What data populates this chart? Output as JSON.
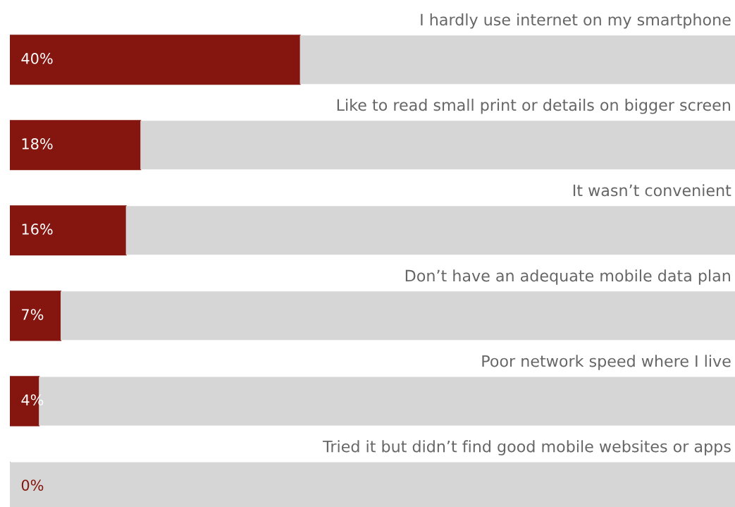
{
  "chart_data": {
    "type": "bar",
    "orientation": "horizontal",
    "stacked": true,
    "categories": [
      "I hardly use internet on my smartphone",
      "Like to read small print or details on bigger screen",
      "It wasn’t convenient",
      "Don’t have an adequate mobile data plan",
      "Poor network speed where I live",
      "Tried it but didn’t find good mobile websites or apps"
    ],
    "series": [
      {
        "color": "#85150f",
        "values": [
          40,
          18,
          16,
          7,
          4,
          0
        ],
        "value_labels": [
          "40%",
          "18%",
          "16%",
          "7%",
          "4%",
          "0%"
        ]
      },
      {
        "color": "#d6d6d6",
        "values": [
          60,
          82,
          84,
          93,
          96,
          100
        ]
      }
    ],
    "legend": false
  }
}
